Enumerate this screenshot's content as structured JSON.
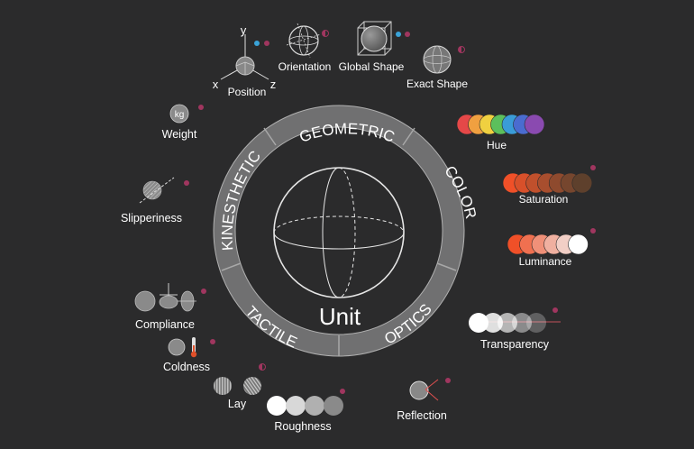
{
  "center": {
    "label": "Unit"
  },
  "categories": {
    "geometric": "GEOMETRIC",
    "color": "COLOR",
    "optics": "OPTICS",
    "tactile": "TACTILE",
    "kinesthetic": "KINESTHETIC"
  },
  "axes": {
    "x": "x",
    "y": "y",
    "z": "z"
  },
  "weight_unit": "kg",
  "properties": {
    "position": "Position",
    "orientation": "Orientation",
    "global_shape": "Global Shape",
    "exact_shape": "Exact Shape",
    "hue": "Hue",
    "saturation": "Saturation",
    "luminance": "Luminance",
    "transparency": "Transparency",
    "reflection": "Reflection",
    "roughness": "Roughness",
    "lay": "Lay",
    "coldness": "Coldness",
    "compliance": "Compliance",
    "slipperiness": "Slipperiness",
    "weight": "Weight"
  },
  "colors": {
    "background": "#2b2b2c",
    "ring": "#6f6f70",
    "dot_magenta": "#a0365f",
    "dot_blue": "#3aa3d8",
    "hue_swatches": [
      "#e54848",
      "#f0a040",
      "#f0d040",
      "#5cbf5c",
      "#3a9cd8",
      "#4a6cd0",
      "#8a4ab0"
    ],
    "saturation_swatches": [
      "#f05028",
      "#d8502a",
      "#c0502c",
      "#a84e2e",
      "#8e4a2e",
      "#76462e",
      "#5e402c"
    ],
    "luminance_swatches": [
      "#f05028",
      "#f07050",
      "#f09078",
      "#f0b0a0",
      "#f2cfc6",
      "#ffffff"
    ]
  }
}
